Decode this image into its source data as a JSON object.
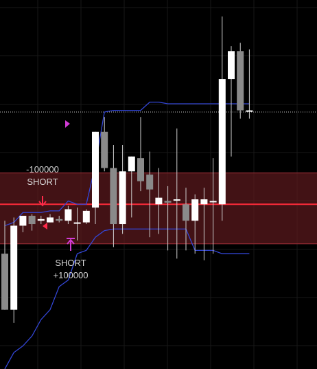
{
  "chart_data": {
    "type": "candlestick",
    "y_domain": [
      -300,
      820
    ],
    "price_line": 200,
    "zone": {
      "low": 80,
      "high": 295
    },
    "dotted_line": 480,
    "candles": [
      {
        "open": 50,
        "high": 150,
        "low": -120,
        "close": -120
      },
      {
        "open": -120,
        "high": 160,
        "low": -160,
        "close": 135
      },
      {
        "open": 135,
        "high": 165,
        "low": 115,
        "close": 165
      },
      {
        "open": 165,
        "high": 170,
        "low": 120,
        "close": 140
      },
      {
        "open": 150,
        "high": 165,
        "low": 140,
        "close": 155
      },
      {
        "open": 145,
        "high": 170,
        "low": 145,
        "close": 160
      },
      {
        "open": 155,
        "high": 165,
        "low": 145,
        "close": 150
      },
      {
        "open": 150,
        "high": 195,
        "low": 140,
        "close": 185
      },
      {
        "open": 145,
        "high": 190,
        "low": 90,
        "close": 145
      },
      {
        "open": 145,
        "high": 185,
        "low": 140,
        "close": 180
      },
      {
        "open": 190,
        "high": 420,
        "low": 140,
        "close": 420
      },
      {
        "open": 420,
        "high": 465,
        "low": 300,
        "close": 310
      },
      {
        "open": 310,
        "high": 380,
        "low": 70,
        "close": 140
      },
      {
        "open": 140,
        "high": 380,
        "low": 110,
        "close": 300
      },
      {
        "open": 300,
        "high": 345,
        "low": 160,
        "close": 345
      },
      {
        "open": 340,
        "high": 465,
        "low": 240,
        "close": 270
      },
      {
        "open": 290,
        "high": 360,
        "low": 100,
        "close": 245
      },
      {
        "open": 200,
        "high": 310,
        "low": 110,
        "close": 220
      },
      {
        "open": 210,
        "high": 255,
        "low": 60,
        "close": 205
      },
      {
        "open": 215,
        "high": 430,
        "low": 35,
        "close": 215
      },
      {
        "open": 200,
        "high": 250,
        "low": 60,
        "close": 150
      },
      {
        "open": 150,
        "high": 230,
        "low": 50,
        "close": 215
      },
      {
        "open": 200,
        "high": 250,
        "low": 30,
        "close": 215
      },
      {
        "open": 210,
        "high": 340,
        "low": 50,
        "close": 210
      },
      {
        "open": 200,
        "high": 770,
        "low": 150,
        "close": 580
      },
      {
        "open": 580,
        "high": 680,
        "low": 345,
        "close": 665
      },
      {
        "open": 665,
        "high": 690,
        "low": 460,
        "close": 485
      },
      {
        "open": 485,
        "high": 670,
        "low": 460,
        "close": 485
      }
    ],
    "upper_band": [
      [
        -100,
        135
      ],
      [
        -100,
        145
      ],
      [
        -80,
        175
      ],
      [
        -80,
        175
      ],
      [
        -50,
        175
      ],
      [
        -50,
        180
      ],
      [
        -20,
        180
      ],
      [
        -20,
        210
      ],
      [
        0,
        200
      ],
      [
        20,
        200
      ],
      [
        60,
        320
      ],
      [
        100,
        480
      ],
      [
        130,
        485
      ],
      [
        150,
        485
      ],
      [
        150,
        485
      ],
      [
        170,
        485
      ],
      [
        210,
        510
      ],
      [
        230,
        510
      ],
      [
        240,
        505
      ],
      [
        260,
        505
      ],
      [
        290,
        505
      ],
      [
        310,
        505
      ],
      [
        330,
        505
      ],
      [
        380,
        505
      ],
      [
        400,
        505
      ],
      [
        450,
        505
      ],
      [
        460,
        505
      ],
      [
        480,
        505
      ]
    ],
    "lower_band": [
      [
        -300,
        -300
      ],
      [
        -250,
        -250
      ],
      [
        -180,
        -230
      ],
      [
        -180,
        -200
      ],
      [
        -150,
        -150
      ],
      [
        -100,
        -120
      ],
      [
        -50,
        -50
      ],
      [
        -20,
        -30
      ],
      [
        0,
        50
      ],
      [
        20,
        60
      ],
      [
        30,
        100
      ],
      [
        50,
        120
      ],
      [
        60,
        125
      ],
      [
        70,
        125
      ],
      [
        85,
        125
      ],
      [
        90,
        125
      ],
      [
        100,
        125
      ],
      [
        120,
        125
      ],
      [
        130,
        125
      ],
      [
        145,
        125
      ],
      [
        150,
        125
      ],
      [
        210,
        60
      ],
      [
        230,
        60
      ],
      [
        240,
        60
      ],
      [
        260,
        50
      ],
      [
        280,
        50
      ],
      [
        290,
        50
      ],
      [
        295,
        50
      ]
    ],
    "annotations": [
      {
        "label_1": "-100000",
        "label_2": "SHORT",
        "candle": 4,
        "price": 285,
        "color": "#ff2a4a"
      },
      {
        "label_1": "SHORT",
        "label_2": "+100000",
        "candle": 9,
        "price": 90,
        "color": "#d23bd6"
      }
    ]
  }
}
